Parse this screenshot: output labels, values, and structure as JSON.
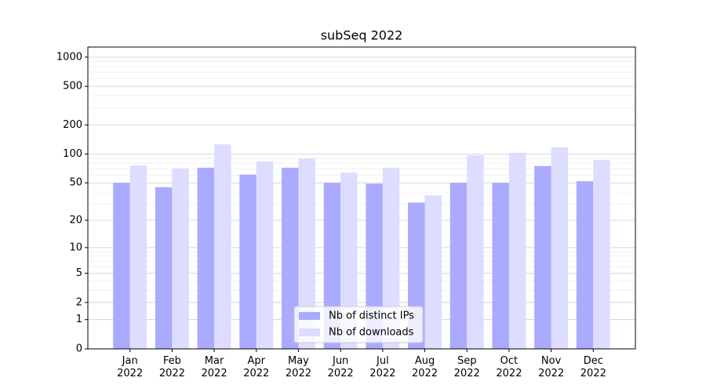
{
  "chart_data": {
    "type": "bar",
    "title": "subSeq 2022",
    "categories": [
      "Jan\n2022",
      "Feb\n2022",
      "Mar\n2022",
      "Apr\n2022",
      "May\n2022",
      "Jun\n2022",
      "Jul\n2022",
      "Aug\n2022",
      "Sep\n2022",
      "Oct\n2022",
      "Nov\n2022",
      "Dec\n2022"
    ],
    "series": [
      {
        "name": "Nb of distinct IPs",
        "color": "#aaaaff",
        "values": [
          50,
          45,
          72,
          61,
          72,
          50,
          49,
          31,
          50,
          50,
          75,
          52
        ]
      },
      {
        "name": "Nb of downloads",
        "color": "#ddddff",
        "values": [
          76,
          71,
          126,
          84,
          90,
          64,
          72,
          37,
          97,
          103,
          117,
          87
        ]
      }
    ],
    "ylim": [
      0,
      1270
    ],
    "yticks": [
      0,
      1,
      2,
      5,
      10,
      20,
      50,
      100,
      200,
      500,
      1000
    ],
    "grid": true,
    "legend": "lower center"
  }
}
